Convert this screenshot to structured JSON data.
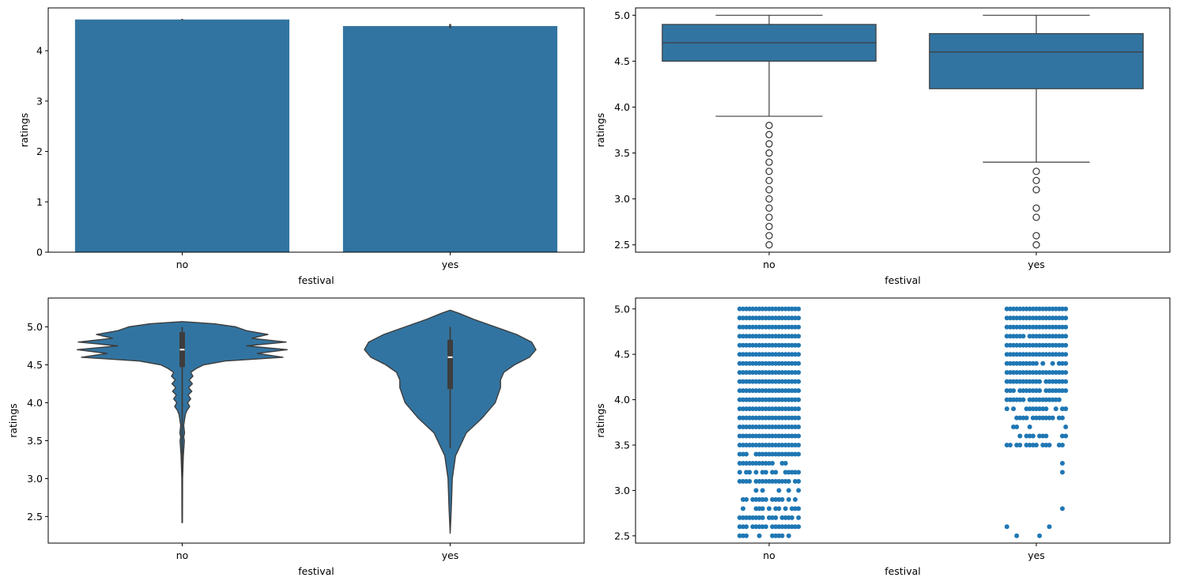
{
  "colors": {
    "fill": "#3274a1",
    "edge": "#3d3d3d",
    "point": "#1f77b4",
    "axis": "#000000"
  },
  "chart_data": [
    {
      "type": "bar",
      "xlabel": "festival",
      "ylabel": "ratings",
      "categories": [
        "no",
        "yes"
      ],
      "values": [
        4.62,
        4.49
      ],
      "error_bars": [
        [
          4.61,
          4.63
        ],
        [
          4.45,
          4.53
        ]
      ],
      "ylim": [
        0,
        4.85
      ],
      "yticks": [
        0,
        1,
        2,
        3,
        4
      ],
      "ytick_labels": [
        "0",
        "1",
        "2",
        "3",
        "4"
      ],
      "grid": false
    },
    {
      "type": "box",
      "xlabel": "festival",
      "ylabel": "ratings",
      "categories": [
        "no",
        "yes"
      ],
      "boxes": [
        {
          "whisker_low": 3.9,
          "q1": 4.5,
          "median": 4.7,
          "q3": 4.9,
          "whisker_high": 5.0,
          "outliers": [
            3.8,
            3.7,
            3.6,
            3.5,
            3.4,
            3.3,
            3.2,
            3.1,
            3.0,
            2.9,
            2.8,
            2.7,
            2.6,
            2.5
          ]
        },
        {
          "whisker_low": 3.4,
          "q1": 4.2,
          "median": 4.6,
          "q3": 4.8,
          "whisker_high": 5.0,
          "outliers": [
            3.3,
            3.2,
            3.1,
            2.9,
            2.8,
            2.6,
            2.5
          ]
        }
      ],
      "ylim": [
        2.42,
        5.08
      ],
      "yticks": [
        2.5,
        3.0,
        3.5,
        4.0,
        4.5,
        5.0
      ],
      "ytick_labels": [
        "2.5",
        "3.0",
        "3.5",
        "4.0",
        "4.5",
        "5.0"
      ],
      "grid": false
    },
    {
      "type": "violin",
      "xlabel": "festival",
      "ylabel": "ratings",
      "categories": [
        "no",
        "yes"
      ],
      "violins": [
        {
          "y_min": 2.42,
          "y_max": 5.07,
          "profile": [
            [
              2.42,
              0.002
            ],
            [
              3.0,
              0.004
            ],
            [
              3.3,
              0.01
            ],
            [
              3.45,
              0.018
            ],
            [
              3.5,
              0.02
            ],
            [
              3.55,
              0.014
            ],
            [
              3.6,
              0.022
            ],
            [
              3.7,
              0.014
            ],
            [
              3.8,
              0.024
            ],
            [
              3.85,
              0.03
            ],
            [
              3.9,
              0.045
            ],
            [
              3.95,
              0.07
            ],
            [
              4.0,
              0.05
            ],
            [
              4.05,
              0.08
            ],
            [
              4.1,
              0.055
            ],
            [
              4.15,
              0.09
            ],
            [
              4.2,
              0.06
            ],
            [
              4.25,
              0.095
            ],
            [
              4.3,
              0.065
            ],
            [
              4.35,
              0.1
            ],
            [
              4.4,
              0.08
            ],
            [
              4.45,
              0.13
            ],
            [
              4.5,
              0.2
            ],
            [
              4.55,
              0.4
            ],
            [
              4.6,
              0.94
            ],
            [
              4.65,
              0.7
            ],
            [
              4.7,
              0.98
            ],
            [
              4.75,
              0.6
            ],
            [
              4.8,
              0.97
            ],
            [
              4.85,
              0.65
            ],
            [
              4.9,
              0.8
            ],
            [
              4.95,
              0.6
            ],
            [
              5.0,
              0.5
            ],
            [
              5.04,
              0.3
            ],
            [
              5.07,
              0.0
            ]
          ],
          "q1": 4.47,
          "median": 4.7,
          "q3": 4.93,
          "whisker_low": 3.1,
          "whisker_high": 5.0
        },
        {
          "y_min": 2.28,
          "y_max": 5.22,
          "profile": [
            [
              2.28,
              0.0
            ],
            [
              2.6,
              0.01
            ],
            [
              3.0,
              0.02
            ],
            [
              3.3,
              0.05
            ],
            [
              3.6,
              0.15
            ],
            [
              3.8,
              0.3
            ],
            [
              4.0,
              0.42
            ],
            [
              4.2,
              0.47
            ],
            [
              4.3,
              0.47
            ],
            [
              4.4,
              0.5
            ],
            [
              4.5,
              0.6
            ],
            [
              4.6,
              0.74
            ],
            [
              4.7,
              0.8
            ],
            [
              4.8,
              0.76
            ],
            [
              4.9,
              0.62
            ],
            [
              5.0,
              0.42
            ],
            [
              5.1,
              0.22
            ],
            [
              5.18,
              0.08
            ],
            [
              5.22,
              0.0
            ]
          ],
          "q1": 4.18,
          "median": 4.6,
          "q3": 4.83,
          "whisker_low": 3.4,
          "whisker_high": 5.0
        }
      ],
      "ylim": [
        2.15,
        5.38
      ],
      "yticks": [
        2.5,
        3.0,
        3.5,
        4.0,
        4.5,
        5.0
      ],
      "ytick_labels": [
        "2.5",
        "3.0",
        "3.5",
        "4.0",
        "4.5",
        "5.0"
      ],
      "grid": false
    },
    {
      "type": "strip",
      "xlabel": "festival",
      "ylabel": "ratings",
      "categories": [
        "no",
        "yes"
      ],
      "strips": [
        {
          "levels": [
            [
              5.0,
              1.0
            ],
            [
              4.9,
              1.0
            ],
            [
              4.8,
              1.0
            ],
            [
              4.7,
              1.0
            ],
            [
              4.6,
              1.0
            ],
            [
              4.5,
              1.0
            ],
            [
              4.4,
              1.0
            ],
            [
              4.3,
              1.0
            ],
            [
              4.2,
              1.0
            ],
            [
              4.1,
              1.0
            ],
            [
              4.0,
              1.0
            ],
            [
              3.9,
              1.0
            ],
            [
              3.8,
              1.0
            ],
            [
              3.7,
              1.0
            ],
            [
              3.6,
              1.0
            ],
            [
              3.5,
              0.95
            ],
            [
              3.4,
              0.7
            ],
            [
              3.3,
              0.7
            ],
            [
              3.2,
              0.6
            ],
            [
              3.1,
              0.7
            ],
            [
              3.0,
              0.35
            ],
            [
              2.9,
              0.5
            ],
            [
              2.8,
              0.75
            ],
            [
              2.7,
              0.75
            ],
            [
              2.6,
              0.85
            ],
            [
              2.5,
              0.65
            ]
          ]
        },
        {
          "levels": [
            [
              5.0,
              1.0
            ],
            [
              4.9,
              1.0
            ],
            [
              4.8,
              1.0
            ],
            [
              4.7,
              0.95
            ],
            [
              4.6,
              1.0
            ],
            [
              4.5,
              1.0
            ],
            [
              4.4,
              0.95
            ],
            [
              4.3,
              1.0
            ],
            [
              4.2,
              0.95
            ],
            [
              4.1,
              0.9
            ],
            [
              4.0,
              0.7
            ],
            [
              3.9,
              0.55
            ],
            [
              3.8,
              0.7
            ],
            [
              3.7,
              0.4
            ],
            [
              3.6,
              0.5
            ],
            [
              3.5,
              0.6
            ],
            [
              3.4,
              0.03
            ],
            [
              3.3,
              0.03
            ],
            [
              3.2,
              0.1
            ],
            [
              3.1,
              0.1
            ],
            [
              2.9,
              0.03
            ],
            [
              2.8,
              0.03
            ],
            [
              2.6,
              0.1
            ],
            [
              2.5,
              0.1
            ]
          ]
        }
      ],
      "ylim": [
        2.42,
        5.12
      ],
      "yticks": [
        2.5,
        3.0,
        3.5,
        4.0,
        4.5,
        5.0
      ],
      "ytick_labels": [
        "2.5",
        "3.0",
        "3.5",
        "4.0",
        "4.5",
        "5.0"
      ],
      "grid": false
    }
  ]
}
